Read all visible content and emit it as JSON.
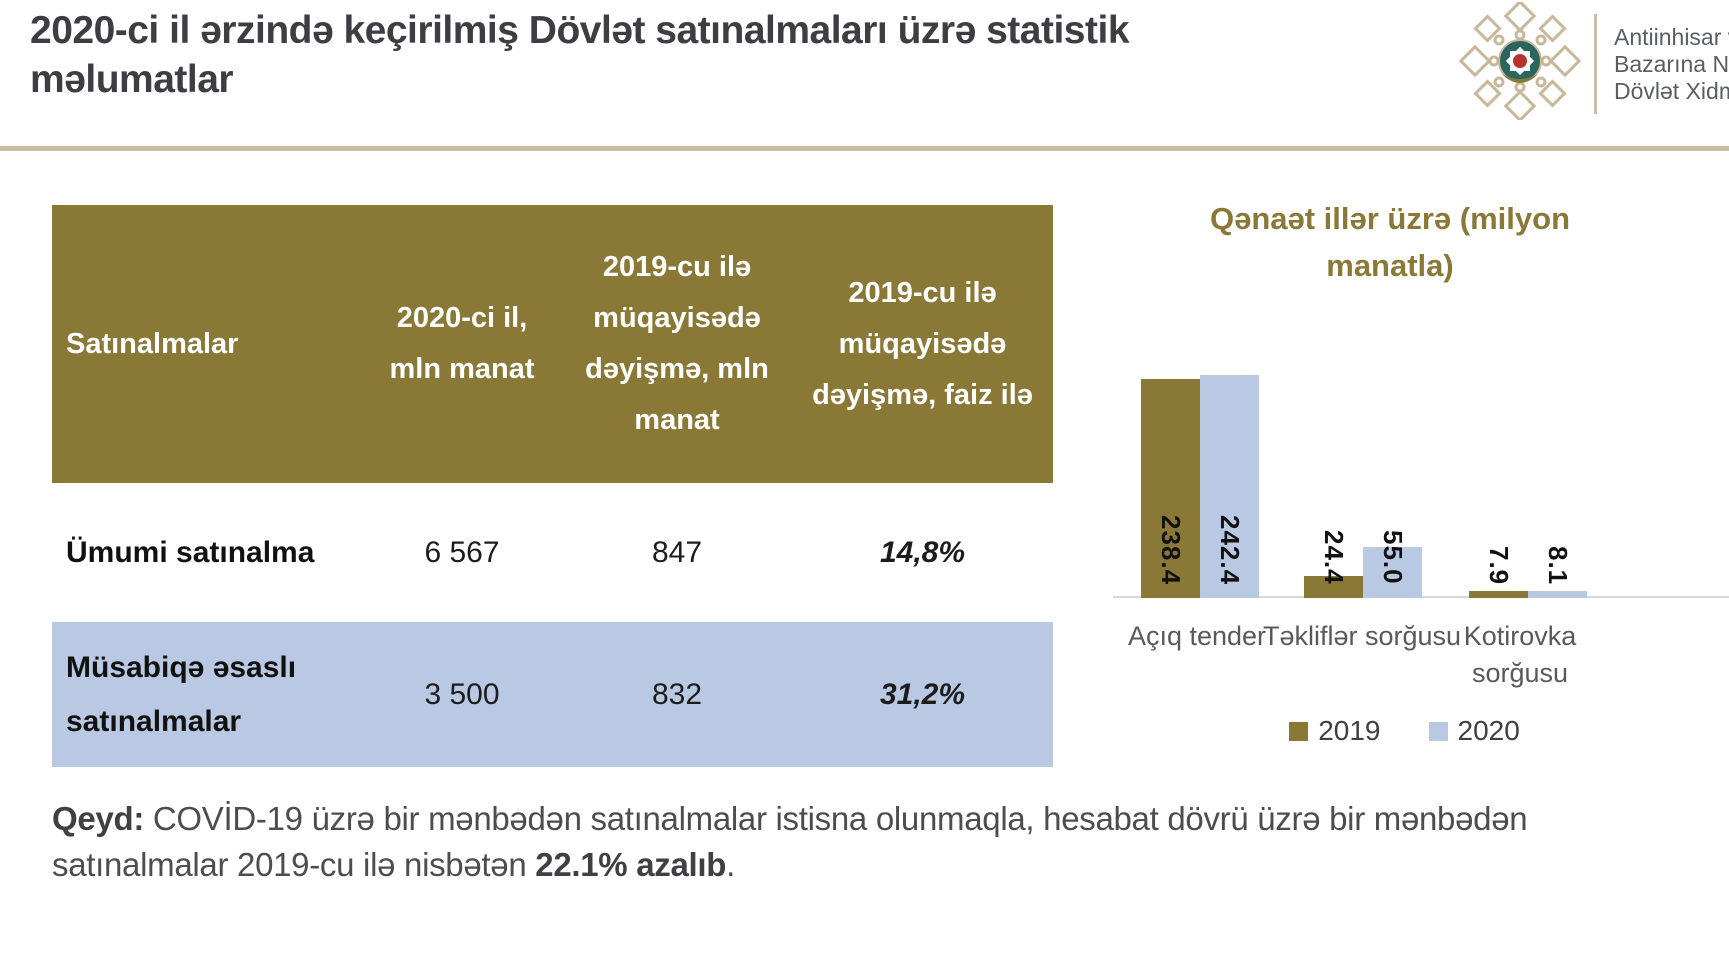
{
  "page": {
    "title": "2020-ci il ərzində keçirilmiş Dövlət satınalmaları üzrə statistik məlumatlar"
  },
  "logo": {
    "emblem": "azerbaijan-state-service-ornament-emblem",
    "org_line1": "Antiinhisar v",
    "org_line2": "Bazarına N",
    "org_line3": "Dövlət Xidm"
  },
  "colors": {
    "olive": "#8a7936",
    "light_blue": "#b9c9e3",
    "beige_divider": "#cdbca4",
    "title_text": "#3e3d44",
    "note_text": "#4c4c51",
    "axis_line": "#d8d8d8",
    "category_label": "#595959"
  },
  "table": {
    "headers": [
      "Satınalmalar",
      "2020-ci il, mln manat",
      "2019-cu ilə müqayisədə dəyişmə, mln manat",
      "2019-cu ilə müqayisədə dəyişmə, faiz ilə"
    ],
    "rows": [
      {
        "label": "Ümumi satınalma",
        "value_2020": "6 567",
        "change_mln": "847",
        "change_pct": "14,8%"
      },
      {
        "label": "Müsabiqə əsaslı satınalmalar",
        "value_2020": "3 500",
        "change_mln": "832",
        "change_pct": "31,2%"
      }
    ]
  },
  "note": {
    "prefix": "Qeyd:",
    "body": " COVİD-19 üzrə bir mənbədən satınalmalar istisna olunmaqla, hesabat dövrü üzrə bir mənbədən satınalmalar 2019-cu ilə nisbətən ",
    "bold": "22.1% azalıb",
    "suffix": "."
  },
  "chart_data": {
    "type": "bar",
    "title": "Qənaət illər üzrə (milyon manatla)",
    "categories": [
      "Açıq tender",
      "Təkliflər sorğusu",
      "Kotirovka sorğusu"
    ],
    "series": [
      {
        "name": "2019",
        "color": "#8a7936",
        "values": [
          238.4,
          24.4,
          7.9
        ]
      },
      {
        "name": "2020",
        "color": "#b9c9e3",
        "values": [
          242.4,
          55.0,
          8.1
        ]
      }
    ],
    "ylim": [
      0,
      260
    ],
    "grid": false,
    "legend_position": "bottom",
    "value_label_format": "one-decimal",
    "value_label_rotation": "vertical",
    "unit": "milyon manat"
  }
}
